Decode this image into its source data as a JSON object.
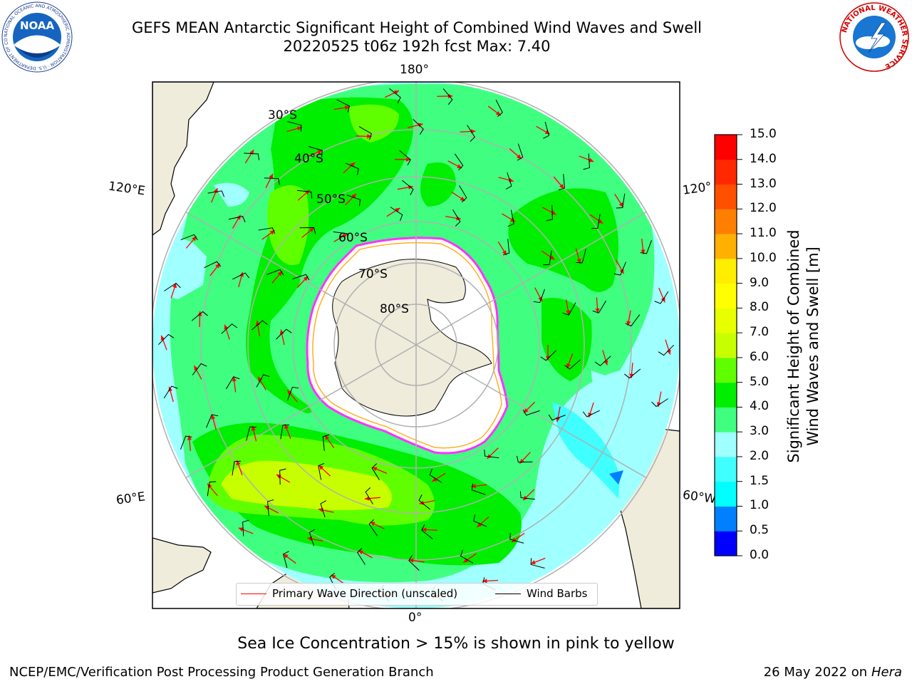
{
  "header": {
    "title_line1": "GEFS MEAN Antarctic Significant Height of Combined Wind Waves and Swell",
    "title_line2": "20220525 t06z 192h fcst   Max: 7.40"
  },
  "logos": {
    "noaa": {
      "text": "NOAA",
      "ring_text": "NATIONAL OCEANIC AND ATMOSPHERIC ADMINISTRATION · U.S. DEPARTMENT OF COMMERCE"
    },
    "nws": {
      "ring_text": "NATIONAL WEATHER SERVICE"
    }
  },
  "map": {
    "longitude_labels": {
      "top": "180°",
      "bottom": "0°",
      "left_upper": "120°E",
      "left_lower": "60°E",
      "right_upper": "120°",
      "right_lower": "60°W"
    },
    "latitude_labels": [
      "30°S",
      "40°S",
      "50°S",
      "60°S",
      "70°S",
      "80°S"
    ],
    "colors": {
      "land": "#efecdc",
      "ice": "#ffffff",
      "grid": "#b0b0b0",
      "arrow": "#ff0000",
      "barb": "#000000",
      "ice_edge": "#ff33ff",
      "ice_edge_inner": "#ffb020"
    }
  },
  "legend": {
    "wave_direction": "Primary Wave Direction (unscaled)",
    "wind_barbs": "Wind Barbs",
    "wave_color": "#ff0000",
    "barb_color": "#000000"
  },
  "colorbar": {
    "ticks": [
      "0.0",
      "0.5",
      "1.0",
      "1.5",
      "2.0",
      "3.0",
      "4.0",
      "5.0",
      "6.0",
      "7.0",
      "8.0",
      "9.0",
      "10.0",
      "11.0",
      "12.0",
      "13.0",
      "14.0",
      "15.0"
    ],
    "colors": [
      "#0000ff",
      "#0080ff",
      "#00ffff",
      "#40ffff",
      "#a0ffff",
      "#40ff80",
      "#00ee00",
      "#60ff00",
      "#c8ff00",
      "#e8ff00",
      "#ffff00",
      "#ffee00",
      "#ffb000",
      "#ff8000",
      "#ff5000",
      "#ff2800",
      "#ff0000"
    ],
    "label_line1": "Significant Height of Combined",
    "label_line2": "Wind Waves and Swell [m]"
  },
  "footer": {
    "note": "Sea Ice Concentration > 15% is shown in pink to yellow",
    "left": "NCEP/EMC/Verification Post Processing Product Generation Branch",
    "right_date": "26 May 2022 on",
    "right_host": "Hera"
  }
}
